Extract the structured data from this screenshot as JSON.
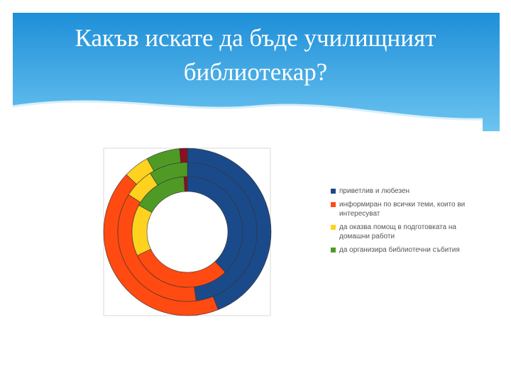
{
  "chart_data": {
    "type": "multi-donut",
    "title": "Какъв искате да бъде училищният библиотекар?",
    "categories": [
      "приветлив и любезен",
      "информиран по всички теми, които ви интересуват",
      "да оказва помощ в подготовката на домашни работи",
      "да организира библиотечни събития",
      null
    ],
    "colors": [
      "#1b4a8a",
      "#ff4a12",
      "#ffd21f",
      "#4f9a25",
      "#8b1020"
    ],
    "series": [
      {
        "values": [
          44,
          43,
          5,
          6.5,
          1.5
        ]
      },
      {
        "values": [
          48,
          36,
          7,
          9,
          0
        ]
      },
      {
        "values": [
          38,
          30,
          15,
          16,
          1
        ]
      }
    ],
    "legend": "right"
  }
}
